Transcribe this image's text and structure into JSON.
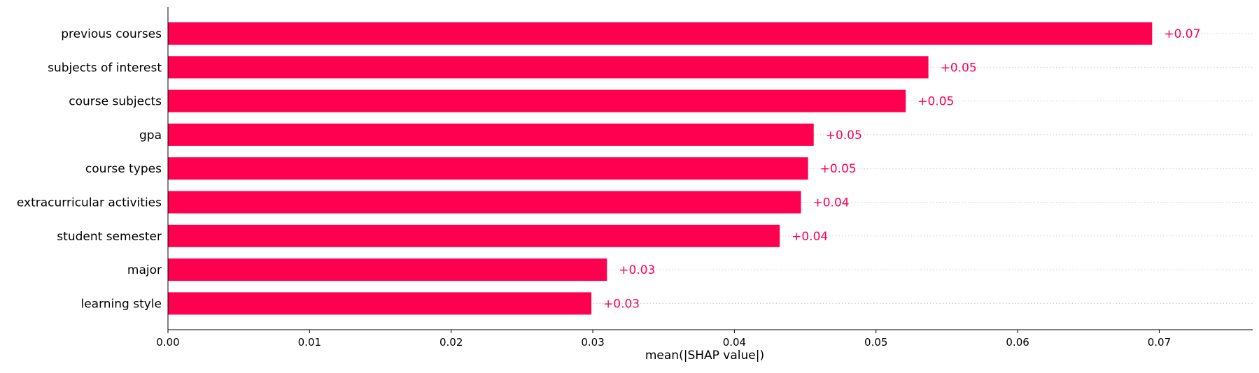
{
  "chart_data": {
    "type": "bar",
    "orientation": "horizontal",
    "title": "",
    "xlabel": "mean(|SHAP value|)",
    "ylabel": "",
    "categories": [
      "previous courses",
      "subjects of interest",
      "course subjects",
      "gpa",
      "course types",
      "extracurricular activities",
      "student semester",
      "major",
      "learning style"
    ],
    "values": [
      0.0695,
      0.0537,
      0.0521,
      0.0456,
      0.0452,
      0.0447,
      0.0432,
      0.031,
      0.0299
    ],
    "value_labels": [
      "+0.07",
      "+0.05",
      "+0.05",
      "+0.05",
      "+0.05",
      "+0.04",
      "+0.04",
      "+0.03",
      "+0.03"
    ],
    "xlim": [
      0.0,
      0.0766
    ],
    "x_ticks": [
      0.0,
      0.01,
      0.02,
      0.03,
      0.04,
      0.05,
      0.06,
      0.07
    ],
    "x_tick_labels": [
      "0.00",
      "0.01",
      "0.02",
      "0.03",
      "0.04",
      "0.05",
      "0.06",
      "0.07"
    ],
    "grid": "dotted row guides",
    "legend": "none",
    "colors": {
      "bar": "#ff0051",
      "axis": "#000000",
      "grid": "#cccccc"
    }
  }
}
